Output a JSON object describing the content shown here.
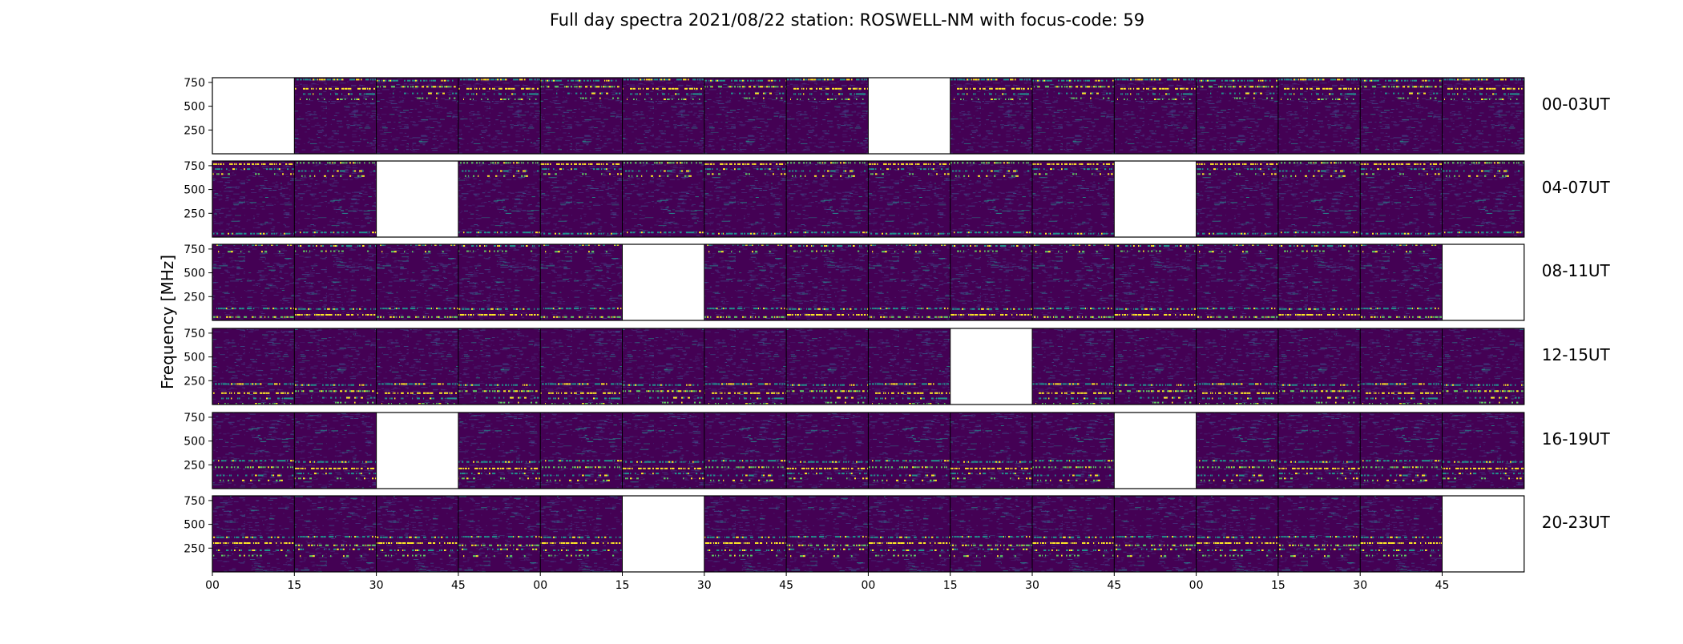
{
  "chart_data": {
    "type": "heatmap",
    "title": "Full day spectra 2021/08/22 station: ROSWELL-NM with focus-code: 59",
    "ylabel": "Frequency [MHz]",
    "xlabel": "",
    "ylim": [
      0,
      800
    ],
    "yticks": [
      250,
      500,
      750
    ],
    "xtick_labels": [
      "00",
      "15",
      "30",
      "45",
      "00",
      "15",
      "30",
      "45",
      "00",
      "15",
      "30",
      "45",
      "00",
      "15",
      "30",
      "45"
    ],
    "colormap": [
      "#440154",
      "#3b528b",
      "#21918c",
      "#5ec962",
      "#fde725"
    ],
    "missing_color": "#ffffff",
    "rows": [
      {
        "label": "00-03UT",
        "missing": [
          0,
          8
        ]
      },
      {
        "label": "04-07UT",
        "missing": [
          2,
          11
        ]
      },
      {
        "label": "08-11UT",
        "missing": [
          5,
          15
        ]
      },
      {
        "label": "12-15UT",
        "missing": [
          9
        ]
      },
      {
        "label": "16-19UT",
        "missing": [
          2,
          11
        ]
      },
      {
        "label": "20-23UT",
        "missing": [
          5,
          15
        ]
      }
    ]
  }
}
